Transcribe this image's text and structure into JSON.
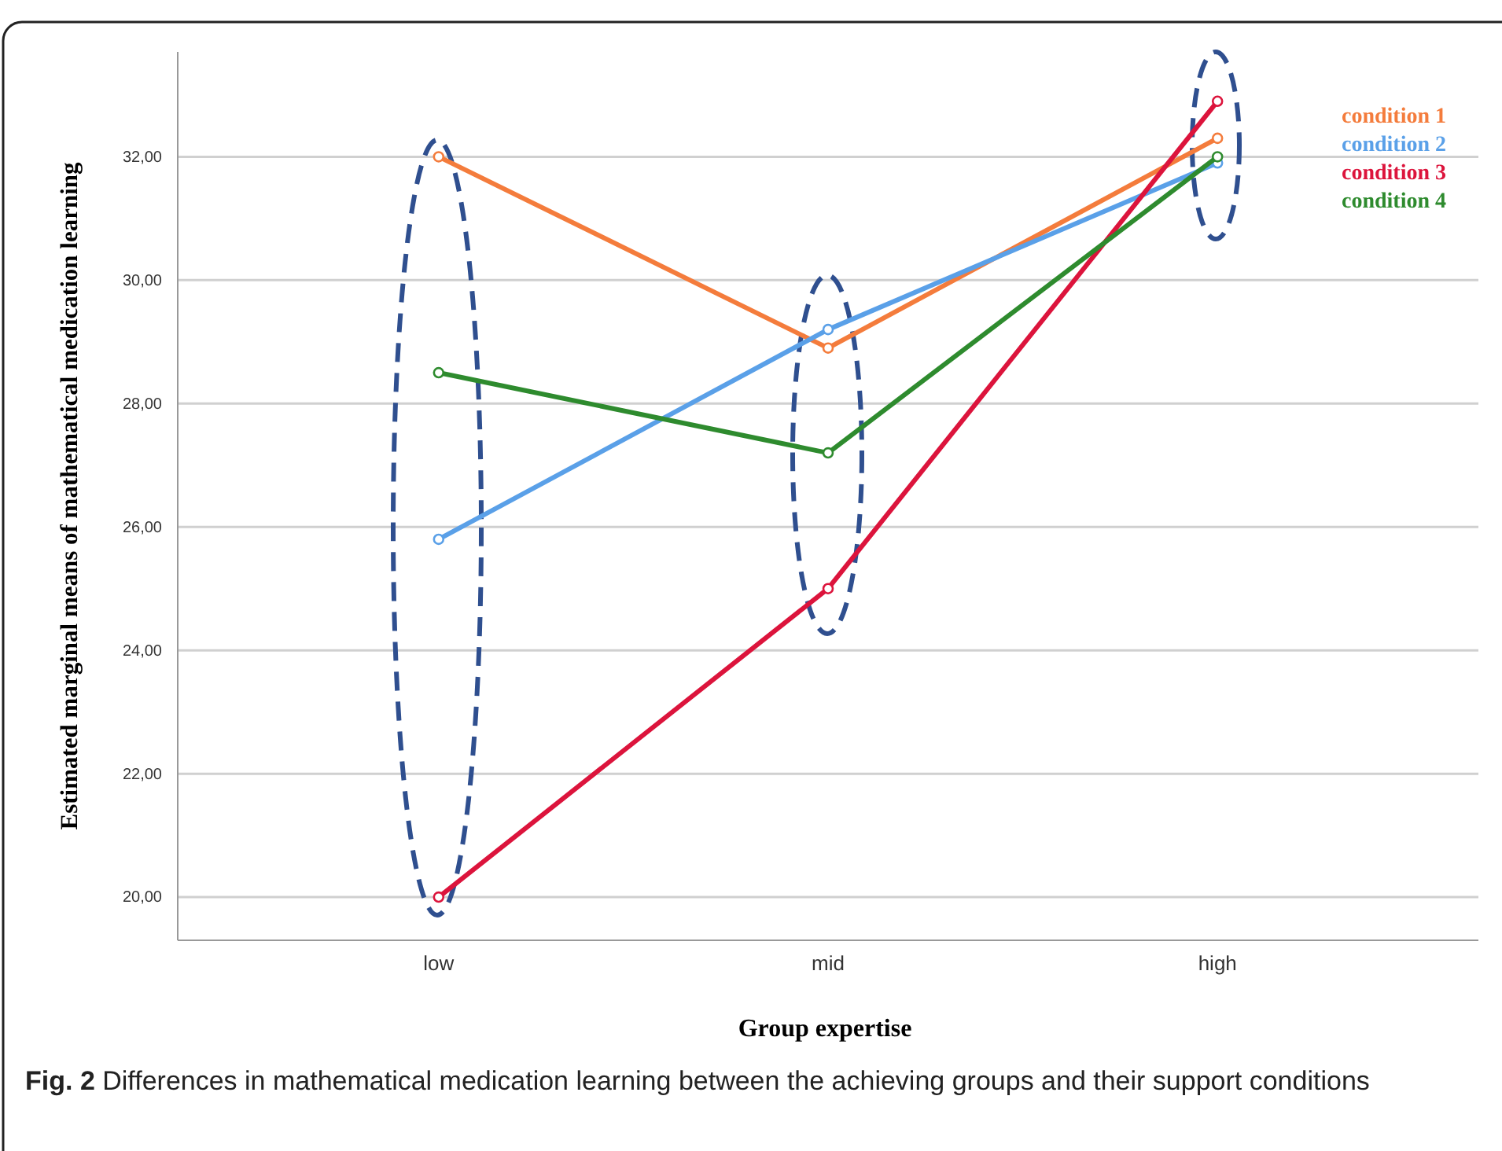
{
  "chart_data": {
    "type": "line",
    "xlabel": "Group expertise",
    "ylabel": "Estimated marginal means of mathematical medication learning",
    "categories": [
      "low",
      "mid",
      "high"
    ],
    "series": [
      {
        "name": "condition 1",
        "color": "#f47c3c",
        "values": [
          32.0,
          28.9,
          32.3
        ]
      },
      {
        "name": "condition 2",
        "color": "#5aa0e8",
        "values": [
          25.8,
          29.2,
          31.9
        ]
      },
      {
        "name": "condition 3",
        "color": "#dc143c",
        "values": [
          20.0,
          25.0,
          32.9
        ]
      },
      {
        "name": "condition 4",
        "color": "#2e8b2e",
        "values": [
          28.5,
          27.2,
          32.0
        ]
      }
    ],
    "ylim": [
      19.3,
      33.7
    ],
    "yticks": [
      {
        "value": 20,
        "label": "20,00"
      },
      {
        "value": 22,
        "label": "22,00"
      },
      {
        "value": 24,
        "label": "24,00"
      },
      {
        "value": 26,
        "label": "26,00"
      },
      {
        "value": 28,
        "label": "28,00"
      },
      {
        "value": 30,
        "label": "30,00"
      },
      {
        "value": 32,
        "label": "32,00"
      }
    ],
    "grid": "y",
    "legend": "top right",
    "marker": "circle",
    "line_style": "solid",
    "annotations": [
      "Fig. 2 Differences in mathematical medication learning between the achieving groups and their support conditions"
    ]
  }
}
